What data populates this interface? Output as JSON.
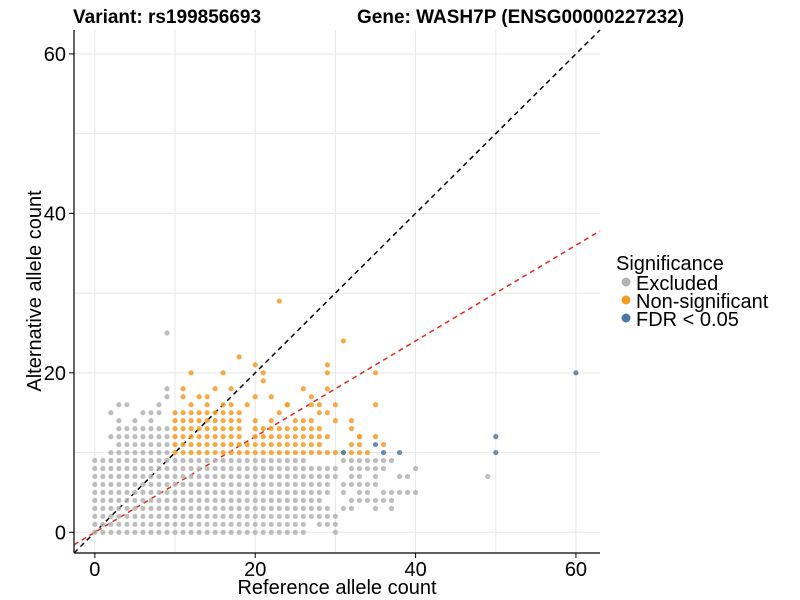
{
  "title": {
    "variant": "Variant: rs199856693",
    "gene": "Gene: WASH7P (ENSG00000227232)"
  },
  "colors": {
    "excluded": "#b3b3b3",
    "non_significant": "#f59a23",
    "fdr": "#4a7aa8",
    "identity_line": "#000000",
    "fit_line": "#e3261f",
    "grid": "#e8e8e8"
  },
  "chart_data": {
    "type": "scatter",
    "xlabel": "Reference allele count",
    "ylabel": "Alternative allele count",
    "xlim": [
      -2.6,
      63
    ],
    "ylim": [
      -2.6,
      63
    ],
    "xticks": [
      0,
      20,
      40,
      60
    ],
    "yticks": [
      0,
      20,
      40,
      60
    ],
    "xtick_labels": [
      "0",
      "20",
      "40",
      "60"
    ],
    "ytick_labels": [
      "0",
      "20",
      "40",
      "60"
    ],
    "grid": true,
    "legend": {
      "title": "Significance",
      "position": "right",
      "entries": [
        {
          "key": "excluded",
          "label": "Excluded"
        },
        {
          "key": "non_significant",
          "label": "Non-significant"
        },
        {
          "key": "fdr",
          "label": "FDR < 0.05"
        }
      ]
    },
    "lines": [
      {
        "name": "identity",
        "slope": 1,
        "intercept": 0,
        "style": "dashed",
        "color_key": "identity_line"
      },
      {
        "name": "fit",
        "slope": 0.6,
        "intercept": 0,
        "style": "dashed",
        "color_key": "fit_line"
      }
    ],
    "series": [
      {
        "name": "Excluded",
        "color_key": "excluded",
        "grid": {
          "x_min": 0,
          "x_max": 26,
          "y_min": 0,
          "y_max": 9
        },
        "extra_points": [
          [
            9,
            25
          ],
          [
            3,
            16
          ],
          [
            4,
            16
          ],
          [
            8,
            16
          ],
          [
            9,
            18
          ],
          [
            9,
            17
          ],
          [
            2,
            15
          ],
          [
            5,
            14
          ],
          [
            6,
            15
          ],
          [
            7,
            15
          ],
          [
            8,
            15
          ],
          [
            3,
            14
          ],
          [
            7,
            14
          ],
          [
            3,
            13
          ],
          [
            4,
            13
          ],
          [
            5,
            13
          ],
          [
            6,
            13
          ],
          [
            7,
            13
          ],
          [
            8,
            13
          ],
          [
            9,
            13
          ],
          [
            2,
            12
          ],
          [
            3,
            12
          ],
          [
            4,
            12
          ],
          [
            5,
            12
          ],
          [
            6,
            12
          ],
          [
            7,
            12
          ],
          [
            8,
            12
          ],
          [
            9,
            12
          ],
          [
            3,
            11
          ],
          [
            4,
            11
          ],
          [
            5,
            11
          ],
          [
            6,
            11
          ],
          [
            7,
            11
          ],
          [
            8,
            11
          ],
          [
            9,
            11
          ],
          [
            2,
            10
          ],
          [
            3,
            10
          ],
          [
            4,
            10
          ],
          [
            5,
            10
          ],
          [
            6,
            10
          ],
          [
            7,
            10
          ],
          [
            8,
            10
          ],
          [
            9,
            10
          ],
          [
            27,
            8
          ],
          [
            28,
            8
          ],
          [
            29,
            8
          ],
          [
            30,
            8
          ],
          [
            27,
            7
          ],
          [
            28,
            7
          ],
          [
            29,
            7
          ],
          [
            30,
            7
          ],
          [
            27,
            6
          ],
          [
            28,
            6
          ],
          [
            29,
            6
          ],
          [
            27,
            5
          ],
          [
            28,
            5
          ],
          [
            29,
            5
          ],
          [
            27,
            4
          ],
          [
            28,
            4
          ],
          [
            27,
            3
          ],
          [
            28,
            3
          ],
          [
            29,
            3
          ],
          [
            27,
            2
          ],
          [
            28,
            2
          ],
          [
            29,
            2
          ],
          [
            28,
            1
          ],
          [
            30,
            1
          ],
          [
            30,
            2
          ],
          [
            31,
            3
          ],
          [
            32,
            3
          ],
          [
            31,
            6
          ],
          [
            32,
            6
          ],
          [
            33,
            6
          ],
          [
            34,
            6
          ],
          [
            32,
            8
          ],
          [
            33,
            8
          ],
          [
            34,
            8
          ],
          [
            35,
            8
          ],
          [
            36,
            8
          ],
          [
            32,
            7
          ],
          [
            33,
            7
          ],
          [
            35,
            7
          ],
          [
            32,
            4
          ],
          [
            33,
            4
          ],
          [
            34,
            4
          ],
          [
            35,
            4
          ],
          [
            36,
            4
          ],
          [
            37,
            4
          ],
          [
            33,
            5
          ],
          [
            31,
            9
          ],
          [
            32,
            9
          ],
          [
            33,
            9
          ],
          [
            34,
            9
          ],
          [
            35,
            9
          ],
          [
            36,
            9
          ],
          [
            36,
            5
          ],
          [
            38,
            5
          ],
          [
            38,
            7
          ],
          [
            39,
            7
          ],
          [
            40,
            8
          ],
          [
            35,
            3
          ],
          [
            37,
            5
          ],
          [
            39,
            5
          ],
          [
            40,
            5
          ],
          [
            49,
            7
          ],
          [
            29,
            1
          ],
          [
            30,
            0
          ],
          [
            31,
            5
          ],
          [
            34,
            5
          ],
          [
            35,
            6
          ],
          [
            37,
            3
          ],
          [
            37,
            9
          ]
        ]
      },
      {
        "name": "Non-significant",
        "color_key": "non_significant",
        "grid": {
          "x_min": 10,
          "x_max": 16,
          "y_min": 10,
          "y_max": 15
        },
        "extra_points": [
          [
            23,
            29
          ],
          [
            11,
            18
          ],
          [
            15,
            18
          ],
          [
            17,
            18
          ],
          [
            12,
            20
          ],
          [
            16,
            20
          ],
          [
            13,
            17
          ],
          [
            11,
            17
          ],
          [
            14,
            17
          ],
          [
            16,
            16
          ],
          [
            12,
            16
          ],
          [
            14,
            16
          ],
          [
            17,
            16
          ],
          [
            18,
            22
          ],
          [
            20,
            21
          ],
          [
            21,
            20
          ],
          [
            17,
            15
          ],
          [
            18,
            15
          ],
          [
            17,
            14
          ],
          [
            18,
            14
          ],
          [
            17,
            13
          ],
          [
            18,
            13
          ],
          [
            17,
            12
          ],
          [
            18,
            12
          ],
          [
            17,
            11
          ],
          [
            18,
            11
          ],
          [
            17,
            10
          ],
          [
            18,
            10
          ],
          [
            19,
            11
          ],
          [
            19,
            10
          ],
          [
            20,
            10
          ],
          [
            21,
            10
          ],
          [
            22,
            10
          ],
          [
            23,
            10
          ],
          [
            24,
            10
          ],
          [
            25,
            10
          ],
          [
            26,
            10
          ],
          [
            27,
            10
          ],
          [
            28,
            10
          ],
          [
            29,
            10
          ],
          [
            30,
            10
          ],
          [
            20,
            12
          ],
          [
            21,
            12
          ],
          [
            22,
            12
          ],
          [
            23,
            12
          ],
          [
            24,
            12
          ],
          [
            25,
            12
          ],
          [
            26,
            12
          ],
          [
            20,
            11
          ],
          [
            21,
            11
          ],
          [
            22,
            11
          ],
          [
            23,
            11
          ],
          [
            24,
            11
          ],
          [
            25,
            11
          ],
          [
            26,
            11
          ],
          [
            27,
            11
          ],
          [
            28,
            11
          ],
          [
            20,
            13
          ],
          [
            21,
            13
          ],
          [
            22,
            13
          ],
          [
            23,
            13
          ],
          [
            24,
            13
          ],
          [
            25,
            13
          ],
          [
            26,
            13
          ],
          [
            27,
            13
          ],
          [
            28,
            13
          ],
          [
            20,
            14
          ],
          [
            22,
            14
          ],
          [
            26,
            14
          ],
          [
            27,
            14
          ],
          [
            28,
            15
          ],
          [
            24,
            16
          ],
          [
            27,
            16
          ],
          [
            28,
            16
          ],
          [
            27,
            17
          ],
          [
            29,
            18
          ],
          [
            29,
            20
          ],
          [
            31,
            24
          ],
          [
            30,
            16
          ],
          [
            32,
            14
          ],
          [
            33,
            12
          ],
          [
            35,
            20
          ],
          [
            35,
            16
          ],
          [
            29,
            21
          ],
          [
            34,
            10
          ],
          [
            33,
            10
          ],
          [
            32,
            10
          ],
          [
            31,
            10
          ],
          [
            32,
            11
          ],
          [
            33,
            11
          ],
          [
            28,
            12
          ],
          [
            29,
            12
          ],
          [
            27,
            12
          ],
          [
            26,
            18
          ],
          [
            22,
            17
          ],
          [
            19,
            16
          ],
          [
            23,
            15
          ],
          [
            25,
            14
          ],
          [
            20,
            17
          ],
          [
            21,
            19
          ],
          [
            24,
            16
          ],
          [
            30,
            14
          ],
          [
            32,
            13
          ],
          [
            29,
            15
          ],
          [
            33,
            12
          ],
          [
            35,
            12
          ],
          [
            36,
            11
          ]
        ]
      },
      {
        "name": "FDR < 0.05",
        "color_key": "fdr",
        "points": [
          [
            31,
            10
          ],
          [
            35,
            11
          ],
          [
            36,
            10
          ],
          [
            38,
            10
          ],
          [
            50,
            12
          ],
          [
            50,
            10
          ],
          [
            60,
            20
          ]
        ]
      }
    ]
  }
}
